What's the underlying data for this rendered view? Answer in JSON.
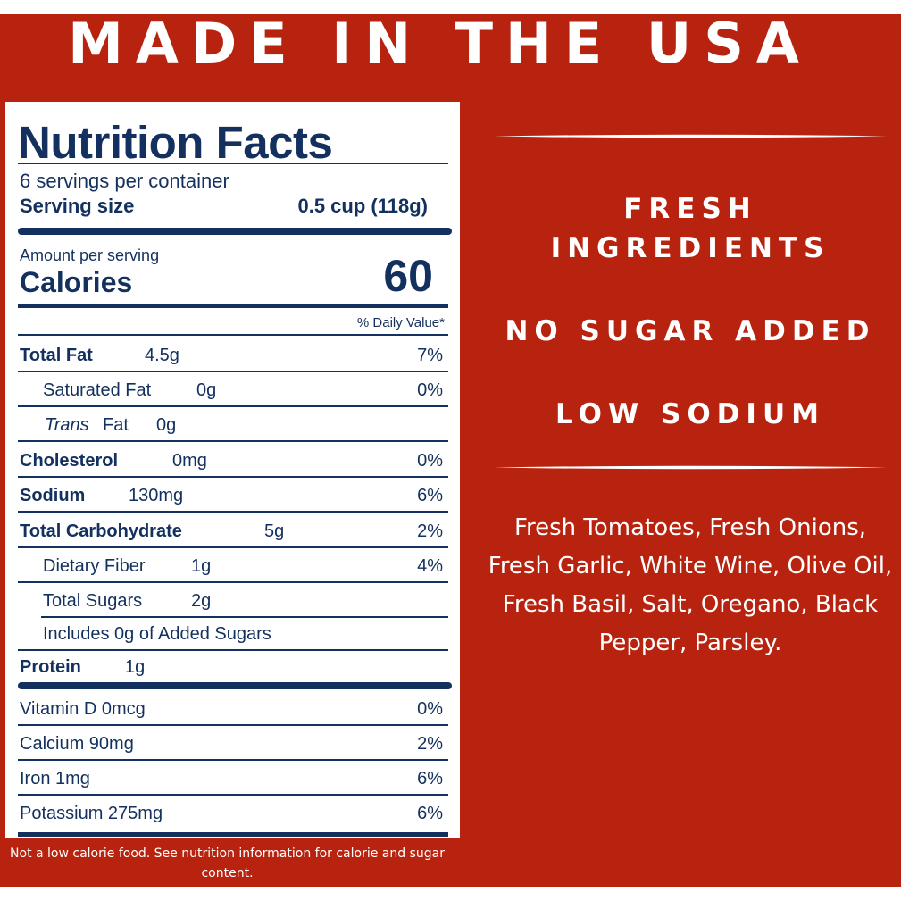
{
  "headline": "MADE IN THE USA",
  "nutrition": {
    "title": "Nutrition Facts",
    "servings_per_container": "6 servings per container",
    "serving_size_label": "Serving size",
    "serving_size_value": "0.5 cup (118g)",
    "amount_per_serving": "Amount per serving",
    "calories_label": "Calories",
    "calories_value": "60",
    "daily_value_header": "% Daily Value*",
    "nutrients": [
      {
        "name": "Total Fat",
        "amount": "4.5g",
        "dv": "7%"
      },
      {
        "name": "Saturated Fat",
        "amount": "0g",
        "dv": "0%"
      },
      {
        "name_italic": "Trans",
        "name": "Fat",
        "amount": "0g",
        "dv": ""
      },
      {
        "name": "Cholesterol",
        "amount": "0mg",
        "dv": "0%"
      },
      {
        "name": "Sodium",
        "amount": "130mg",
        "dv": "6%"
      },
      {
        "name": "Total Carbohydrate",
        "amount": "5g",
        "dv": "2%"
      },
      {
        "name": "Dietary Fiber",
        "amount": "1g",
        "dv": "4%"
      },
      {
        "name": "Total Sugars",
        "amount": "2g",
        "dv": ""
      },
      {
        "name": "Includes 0g of Added Sugars",
        "amount": "",
        "dv": ""
      },
      {
        "name": "Protein",
        "amount": "1g",
        "dv": ""
      }
    ],
    "vitamins": [
      {
        "name": "Vitamin D 0mcg",
        "dv": "0%"
      },
      {
        "name": "Calcium 90mg",
        "dv": "2%"
      },
      {
        "name": "Iron 1mg",
        "dv": "6%"
      },
      {
        "name": "Potassium 275mg",
        "dv": "6%"
      }
    ],
    "footnote": "Not a low calorie food. See nutrition information for calorie and sugar content."
  },
  "claims": [
    "FRESH INGREDIENTS",
    "NO SUGAR ADDED",
    "LOW SODIUM"
  ],
  "ingredients": "Fresh Tomatoes, Fresh Onions, Fresh Garlic, White Wine, Olive Oil, Fresh Basil, Salt, Oregano, Black Pepper, Parsley.",
  "colors": {
    "background": "#b8230f",
    "label_ink": "#13305e",
    "text": "#ffffff"
  }
}
